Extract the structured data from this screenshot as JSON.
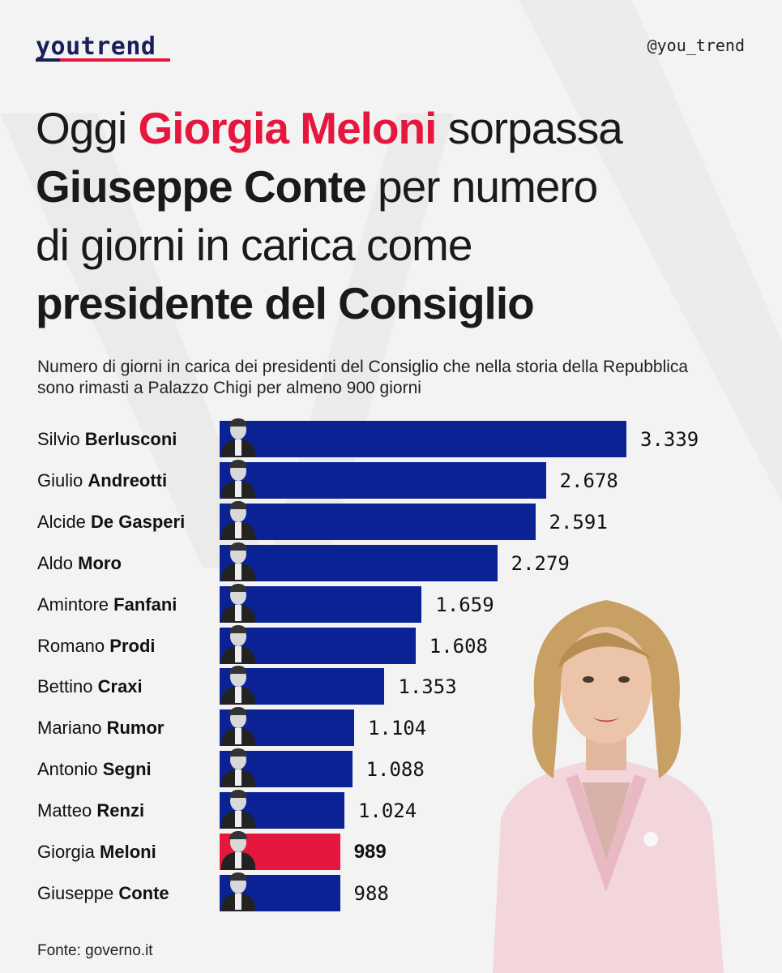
{
  "header": {
    "brand": "youtrend",
    "handle": "@you_trend"
  },
  "headline": {
    "w1": "Oggi",
    "w2": "Giorgia Meloni",
    "w3": "sorpassa",
    "w4": "Giuseppe Conte",
    "w5": "per numero",
    "w6": "di giorni in carica come",
    "w7": "presidente del Consiglio"
  },
  "subtitle": "Numero di giorni in carica dei presidenti del Consiglio che nella storia della Repubblica sono rimasti a Palazzo Chigi per almeno 900 giorni",
  "source": "Fonte: governo.it",
  "colors": {
    "bar_default": "#0a2293",
    "bar_highlight": "#e5173f",
    "accent": "#e5173f",
    "brand": "#1a1f5c"
  },
  "chart_data": {
    "type": "bar",
    "orientation": "horizontal",
    "categories": [
      {
        "first": "Silvio",
        "last": "Berlusconi"
      },
      {
        "first": "Giulio",
        "last": "Andreotti"
      },
      {
        "first": "Alcide",
        "last": "De Gasperi"
      },
      {
        "first": "Aldo",
        "last": "Moro"
      },
      {
        "first": "Amintore",
        "last": "Fanfani"
      },
      {
        "first": "Romano",
        "last": "Prodi"
      },
      {
        "first": "Bettino",
        "last": "Craxi"
      },
      {
        "first": "Mariano",
        "last": "Rumor"
      },
      {
        "first": "Antonio",
        "last": "Segni"
      },
      {
        "first": "Matteo",
        "last": "Renzi"
      },
      {
        "first": "Giorgia",
        "last": "Meloni"
      },
      {
        "first": "Giuseppe",
        "last": "Conte"
      }
    ],
    "values": [
      3339,
      2678,
      2591,
      2279,
      1659,
      1608,
      1353,
      1104,
      1088,
      1024,
      989,
      988
    ],
    "value_labels": [
      "3.339",
      "2.678",
      "2.591",
      "2.279",
      "1.659",
      "1.608",
      "1.353",
      "1.104",
      "1.088",
      "1.024",
      "989",
      "988"
    ],
    "highlight": "Meloni",
    "grid": false,
    "legend": "none"
  }
}
